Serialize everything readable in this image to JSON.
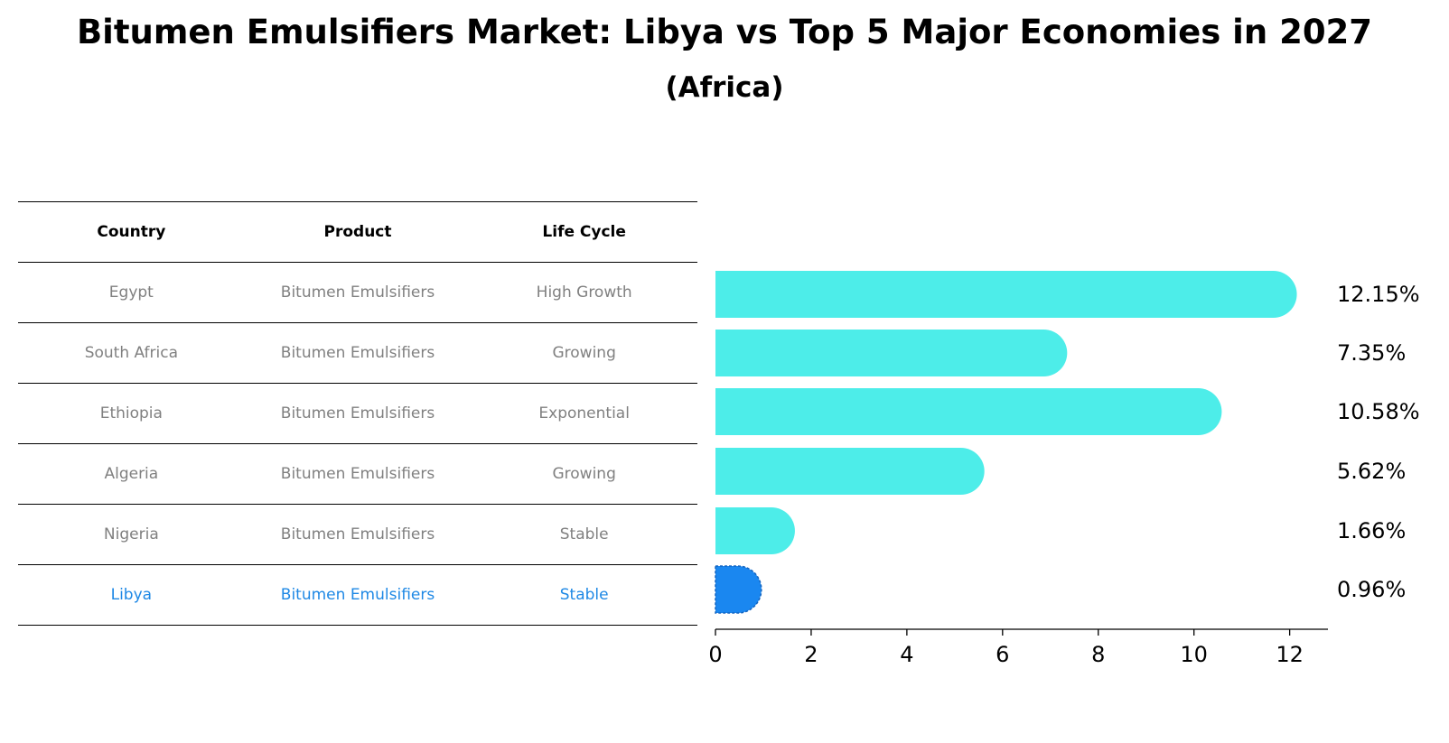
{
  "title": "Bitumen Emulsifiers Market: Libya vs Top 5 Major Economies in 2027",
  "subtitle": "(Africa)",
  "table": {
    "headers": [
      "Country",
      "Product",
      "Life Cycle"
    ],
    "rows": [
      [
        "Egypt",
        "Bitumen Emulsifiers",
        "High Growth"
      ],
      [
        "South Africa",
        "Bitumen Emulsifiers",
        "Growing"
      ],
      [
        "Ethiopia",
        "Bitumen Emulsifiers",
        "Exponential"
      ],
      [
        "Algeria",
        "Bitumen Emulsifiers",
        "Growing"
      ],
      [
        "Nigeria",
        "Bitumen Emulsifiers",
        "Stable"
      ],
      [
        "Libya",
        "Bitumen Emulsifiers",
        "Stable"
      ]
    ]
  },
  "colors": {
    "bar": "#4dede9",
    "highlight": "#1a87f0",
    "text_gray": "#808080"
  },
  "chart_data": {
    "type": "bar",
    "orientation": "horizontal",
    "categories": [
      "Egypt",
      "South Africa",
      "Ethiopia",
      "Algeria",
      "Nigeria",
      "Libya"
    ],
    "values": [
      12.15,
      7.35,
      10.58,
      5.62,
      1.66,
      0.96
    ],
    "value_labels": [
      "12.15%",
      "7.35%",
      "10.58%",
      "5.62%",
      "1.66%",
      "0.96%"
    ],
    "highlight": "Libya",
    "xlim": [
      0,
      12.8
    ],
    "xticks": [
      0,
      2,
      4,
      6,
      8,
      10,
      12
    ],
    "grid": false
  }
}
